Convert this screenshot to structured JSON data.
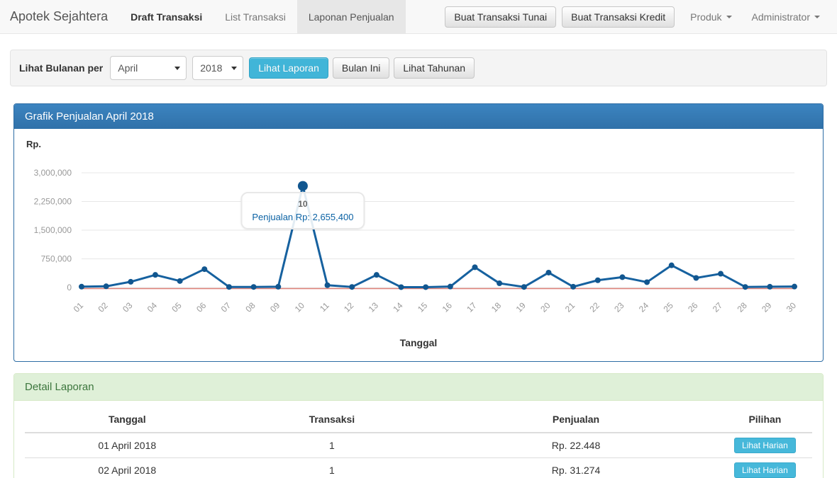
{
  "navbar": {
    "brand": "Apotek Sejahtera",
    "items": [
      {
        "label": "Draft Transaksi"
      },
      {
        "label": "List Transaksi"
      },
      {
        "label": "Laponan Penjualan"
      }
    ],
    "buttons": [
      "Buat Transaksi Tunai",
      "Buat Transaksi Kredit"
    ],
    "dropdowns": [
      "Produk",
      "Administrator"
    ]
  },
  "filter": {
    "label": "Lihat Bulanan per",
    "month_value": "April",
    "year_value": "2018",
    "view_report_button": "Lihat Laporan",
    "this_month_button": "Bulan Ini",
    "yearly_button": "Lihat Tahunan"
  },
  "chart_panel": {
    "title": "Grafik Penjualan April 2018",
    "y_unit_label": "Rp.",
    "x_axis_label": "Tanggal",
    "tooltip": {
      "title": "10",
      "text": "Penjualan Rp: 2,655,400"
    }
  },
  "chart_data": {
    "type": "line",
    "title": "Grafik Penjualan April 2018",
    "xlabel": "Tanggal",
    "ylabel": "Rp.",
    "x": [
      "01",
      "02",
      "03",
      "04",
      "05",
      "06",
      "07",
      "08",
      "09",
      "10",
      "11",
      "12",
      "13",
      "14",
      "15",
      "16",
      "17",
      "18",
      "19",
      "20",
      "21",
      "22",
      "23",
      "24",
      "25",
      "26",
      "27",
      "28",
      "29",
      "30"
    ],
    "series": [
      {
        "name": "Penjualan",
        "values": [
          22448,
          31274,
          150000,
          330000,
          170000,
          480000,
          15000,
          15000,
          20000,
          2655400,
          60000,
          15000,
          330000,
          10000,
          10000,
          25000,
          530000,
          110000,
          15000,
          390000,
          20000,
          190000,
          270000,
          140000,
          580000,
          250000,
          360000,
          15000,
          20000,
          25000
        ]
      }
    ],
    "ylim": [
      0,
      3000000
    ],
    "yticks": [
      0,
      750000,
      1500000,
      2250000,
      3000000
    ],
    "ytick_labels": [
      "0",
      "750,000",
      "1,500,000",
      "2,250,000",
      "3,000,000"
    ],
    "grid": "horizontal",
    "legend": "none",
    "highlight_index": 9,
    "highlight_tooltip": {
      "label": "10",
      "value": "Penjualan Rp: 2,655,400"
    },
    "colors": {
      "line": "#16619f",
      "point": "#11568f",
      "zero_line": "#dd7f76",
      "grid": "#e7e7e7",
      "axis_text": "#999999"
    }
  },
  "detail_panel": {
    "title": "Detail Laporan",
    "table": {
      "headers": [
        "Tanggal",
        "Transaksi",
        "Penjualan",
        "Pilihan"
      ],
      "rows": [
        {
          "tanggal": "01 April 2018",
          "transaksi": "1",
          "penjualan": "Rp. 22.448",
          "action": "Lihat Harian"
        },
        {
          "tanggal": "02 April 2018",
          "transaksi": "1",
          "penjualan": "Rp. 31.274",
          "action": "Lihat Harian"
        }
      ]
    }
  },
  "colors": {
    "primary_blue": "#3276b1",
    "info_cyan": "#41b5d8",
    "success_bg": "#dff0d8",
    "success_text": "#3c763d",
    "navbar_bg": "#f8f8f8"
  }
}
